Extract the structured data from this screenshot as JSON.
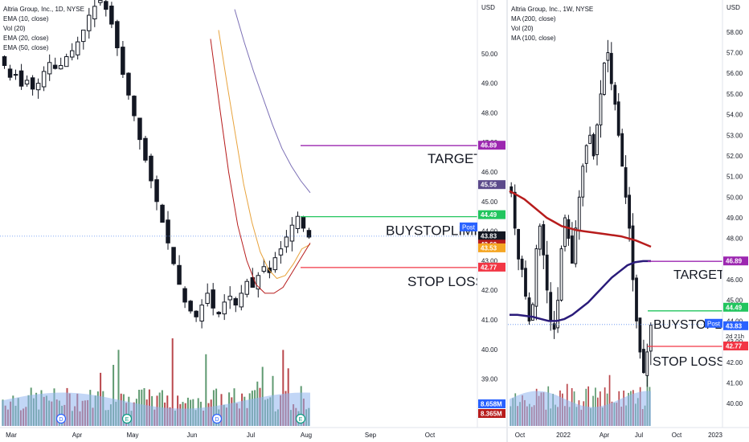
{
  "chart_data": [
    {
      "type": "candlestick",
      "title": "Altria Group, Inc., 1D, NYSE",
      "indicators": [
        "EMA (10, close)",
        "Vol (20)",
        "EMA (20, close)",
        "EMA (50, close)"
      ],
      "y_axis_label": "USD",
      "ylim": [
        38.5,
        51.0
      ],
      "y_ticks": [
        50.0,
        49.0,
        48.0,
        47.0,
        46.0,
        45.0,
        44.0,
        43.0,
        42.0,
        41.0,
        40.0,
        39.0
      ],
      "x_ticks": [
        "Mar",
        "Apr",
        "May",
        "Jun",
        "Jul",
        "Aug",
        "Sep",
        "Oct"
      ],
      "price_tags": [
        {
          "text": "46.89",
          "value": 46.89,
          "color": "#9c27b0"
        },
        {
          "text": "45.56",
          "value": 45.56,
          "color": "#5b4a8b"
        },
        {
          "text": "44.49",
          "value": 44.49,
          "color": "#22c55e"
        },
        {
          "text": "43.83",
          "value": 43.83,
          "color": "#131722"
        },
        {
          "text": "43.60",
          "value": 43.6,
          "color": "#b71c1c"
        },
        {
          "text": "43.53",
          "value": 43.53,
          "color": "#f5a623"
        },
        {
          "text": "42.77",
          "value": 42.77,
          "color": "#f23645"
        },
        {
          "text": "8.658M",
          "color": "#2962ff"
        },
        {
          "text": "8.365M",
          "color": "#b71c1c"
        }
      ],
      "post_tag": {
        "label": "Post",
        "value": "43.83"
      },
      "levels": [
        {
          "label": "TARGET",
          "value": 46.89,
          "color": "#9c27b0"
        },
        {
          "label": "BUYSTOPLIMIT",
          "value": 44.49,
          "color": "#22c55e"
        },
        {
          "label": "STOP LOSS",
          "value": 42.77,
          "color": "#f23645"
        }
      ],
      "current_price": 43.83,
      "price_path": [
        49.6,
        49.2,
        49.3,
        48.9,
        49.1,
        48.8,
        49.0,
        49.4,
        49.7,
        49.5,
        49.6,
        49.9,
        50.1,
        50.4,
        50.8,
        51.3,
        51.6,
        51.8,
        51.5,
        51.0,
        50.2,
        49.3,
        48.6,
        47.9,
        47.1,
        46.4,
        45.7,
        45.0,
        44.3,
        43.6,
        42.9,
        42.2,
        41.6,
        41.3,
        41.1,
        41.5,
        41.9,
        41.4,
        41.2,
        41.6,
        41.8,
        41.5,
        41.9,
        42.3,
        42.1,
        42.5,
        42.8,
        42.6,
        43.1,
        43.4,
        43.8,
        44.2,
        44.5,
        44.1,
        43.8
      ],
      "event_markers": [
        "D",
        "E",
        "D",
        "E"
      ]
    },
    {
      "type": "candlestick",
      "title": "Altria Group, Inc., 1W, NYSE",
      "indicators": [
        "MA (200, close)",
        "Vol (20)",
        "MA (100, close)"
      ],
      "y_axis_label": "USD",
      "ylim": [
        39.5,
        58.5
      ],
      "y_ticks": [
        58.0,
        57.0,
        56.0,
        55.0,
        54.0,
        53.0,
        52.0,
        51.0,
        50.0,
        49.0,
        48.0,
        47.0,
        46.0,
        45.0,
        44.0,
        43.0,
        42.0,
        41.0,
        40.0
      ],
      "x_ticks": [
        "Oct",
        "2022",
        "Apr",
        "Jul",
        "Oct",
        "2023"
      ],
      "price_tags": [
        {
          "text": "46.89",
          "value": 46.89,
          "color": "#9c27b0"
        },
        {
          "text": "44.49",
          "value": 44.49,
          "color": "#22c55e"
        },
        {
          "text": "43.83",
          "value": 43.83,
          "color": "#2962ff"
        },
        {
          "text": "42.77",
          "value": 42.77,
          "color": "#f23645"
        }
      ],
      "post_tag": {
        "label": "Post",
        "value": "43.83"
      },
      "countdown": "2d 21h",
      "levels": [
        {
          "label": "TARGET",
          "value": 46.89,
          "color": "#9c27b0"
        },
        {
          "label": "BUYSTOPLIMIT",
          "value": 44.49,
          "color": "#22c55e"
        },
        {
          "label": "STOP LOSS",
          "value": 42.77,
          "color": "#f23645"
        }
      ],
      "current_price": 43.83,
      "price_path": [
        50.2,
        48.5,
        47.0,
        46.5,
        45.2,
        44.0,
        44.8,
        47.5,
        48.6,
        47.2,
        45.5,
        44.0,
        43.6,
        45.0,
        47.5,
        49.0,
        48.0,
        46.8,
        48.5,
        50.0,
        51.5,
        52.5,
        53.0,
        52.0,
        53.5,
        55.0,
        56.5,
        57.0,
        55.5,
        54.5,
        53.0,
        51.5,
        50.0,
        48.5,
        46.0,
        44.0,
        42.5,
        41.5,
        42.5,
        43.8
      ],
      "ma200": [
        50.3,
        50.1,
        49.9,
        49.6,
        49.3,
        49.0,
        48.8,
        48.6,
        48.5,
        48.4,
        48.35,
        48.3,
        48.25,
        48.2,
        48.15,
        48.1,
        48.0,
        47.9,
        47.75,
        47.6
      ],
      "ma100": [
        44.3,
        44.3,
        44.25,
        44.2,
        44.1,
        44.0,
        44.0,
        44.1,
        44.3,
        44.6,
        44.9,
        45.3,
        45.7,
        46.1,
        46.4,
        46.7,
        46.85,
        46.9,
        46.9
      ]
    }
  ]
}
